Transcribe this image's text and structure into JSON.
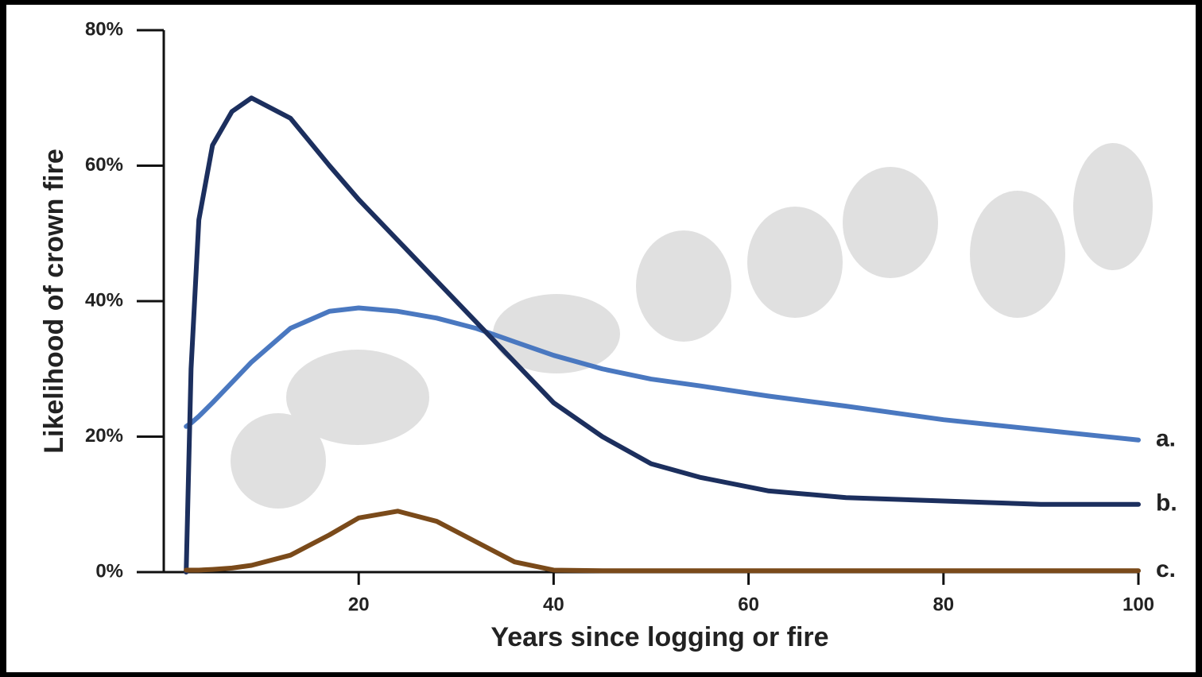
{
  "chart_data": {
    "type": "line",
    "x_label": "Years since logging or fire",
    "y_label": "Likelihood of crown fire",
    "x": [
      2.3,
      2.8,
      3.6,
      5,
      7,
      9,
      13,
      17,
      20,
      24,
      28,
      32,
      36,
      40,
      45,
      50,
      55,
      62,
      70,
      80,
      90,
      100
    ],
    "series": [
      {
        "name": "a.",
        "color": "#4a78c0",
        "values": [
          21.5,
          22,
          23,
          25,
          28,
          31,
          36,
          38.5,
          39,
          38.5,
          37.5,
          36,
          34,
          32,
          30,
          28.5,
          27.5,
          26,
          24.5,
          22.5,
          21,
          19.5
        ]
      },
      {
        "name": "b.",
        "color": "#1c2f5e",
        "values": [
          0,
          30,
          52,
          63,
          68,
          70,
          67,
          60,
          55,
          49,
          43,
          37,
          31,
          25,
          20,
          16,
          14,
          12,
          11,
          10.5,
          10,
          10
        ]
      },
      {
        "name": "c.",
        "color": "#7a4a1a",
        "values": [
          0.3,
          0.3,
          0.3,
          0.4,
          0.6,
          1,
          2.5,
          5.5,
          8,
          9,
          7.5,
          4.5,
          1.5,
          0.3,
          0.2,
          0.2,
          0.2,
          0.2,
          0.2,
          0.2,
          0.2,
          0.2
        ]
      }
    ],
    "xlim": [
      0,
      100
    ],
    "xticks": [
      20,
      40,
      60,
      80,
      100
    ],
    "ylim": [
      0,
      80
    ],
    "yticks": [
      {
        "value": 0,
        "label": "0%"
      },
      {
        "value": 20,
        "label": "20%"
      },
      {
        "value": 40,
        "label": "40%"
      },
      {
        "value": 60,
        "label": "60%"
      },
      {
        "value": 80,
        "label": "80%"
      }
    ],
    "grid": false
  }
}
